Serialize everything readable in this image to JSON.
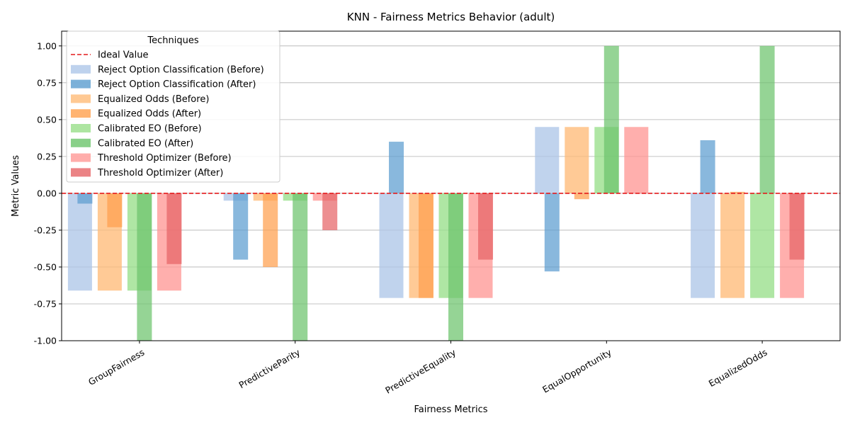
{
  "chart_data": {
    "type": "bar",
    "title": "KNN - Fairness Metrics Behavior (adult)",
    "xlabel": "Fairness Metrics",
    "ylabel": "Metric Values",
    "ylim": [
      -1.0,
      1.1
    ],
    "yticks": [
      "-1.00",
      "-0.75",
      "-0.50",
      "-0.25",
      "0.00",
      "0.25",
      "0.50",
      "0.75",
      "1.00"
    ],
    "grid": "horizontal",
    "categories": [
      "GroupFairness",
      "PredictiveParity",
      "PredictiveEquality",
      "EqualOpportunity",
      "EqualizedOdds"
    ],
    "ideal_line": {
      "name": "Ideal Value",
      "value": 0.0,
      "color": "#e41a1c"
    },
    "legend": {
      "title": "Techniques",
      "placement": "upper-left"
    },
    "series": [
      {
        "name": "Reject Option Classification (Before)",
        "color": "#aec7e8",
        "values": [
          -0.66,
          -0.05,
          -0.71,
          0.45,
          -0.71
        ]
      },
      {
        "name": "Reject Option Classification (After)",
        "color": "#5b9dd0",
        "values": [
          -0.07,
          -0.45,
          0.35,
          -0.53,
          0.36
        ]
      },
      {
        "name": "Equalized Odds (Before)",
        "color": "#ffbb78",
        "values": [
          -0.66,
          -0.05,
          -0.71,
          0.45,
          -0.71
        ]
      },
      {
        "name": "Equalized Odds (After)",
        "color": "#ffa04d",
        "values": [
          -0.23,
          -0.5,
          -0.71,
          -0.04,
          0.01
        ]
      },
      {
        "name": "Calibrated EO (Before)",
        "color": "#98df8a",
        "values": [
          -0.66,
          -0.05,
          -0.71,
          0.45,
          -0.71
        ]
      },
      {
        "name": "Calibrated EO (After)",
        "color": "#6cc46c",
        "values": [
          -1.0,
          -1.0,
          -1.0,
          1.0,
          1.0
        ]
      },
      {
        "name": "Threshold Optimizer (Before)",
        "color": "#ff9896",
        "values": [
          -0.66,
          -0.05,
          -0.71,
          0.45,
          -0.71
        ]
      },
      {
        "name": "Threshold Optimizer (After)",
        "color": "#e66466",
        "values": [
          -0.48,
          -0.25,
          -0.45,
          0.0,
          -0.45
        ]
      }
    ]
  }
}
